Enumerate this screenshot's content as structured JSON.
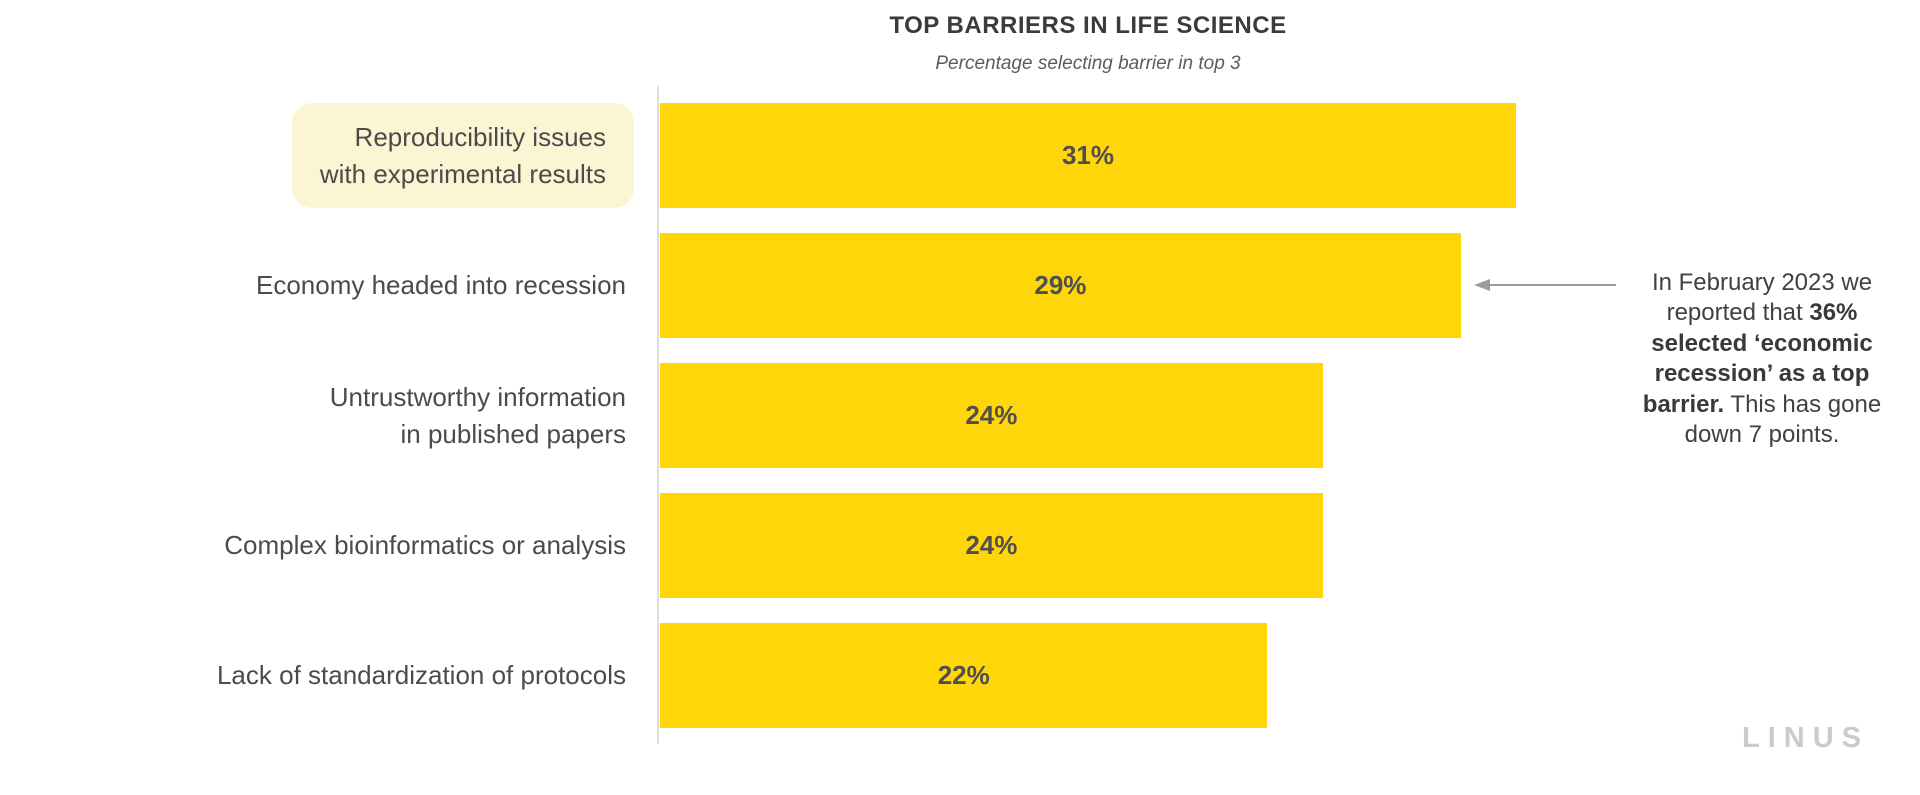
{
  "chart_data": {
    "type": "bar",
    "orientation": "horizontal",
    "title": "TOP BARRIERS IN LIFE SCIENCE",
    "subtitle": "Percentage selecting barrier in top 3",
    "categories": [
      "Reproducibility issues\nwith experimental results",
      "Economy headed into recession",
      "Untrustworthy information\nin published papers",
      "Complex bioinformatics or analysis",
      "Lack of standardization of protocols"
    ],
    "values": [
      31,
      29,
      24,
      24,
      22
    ],
    "value_labels": [
      "31%",
      "29%",
      "24%",
      "24%",
      "22%"
    ],
    "xlim": [
      0,
      31
    ],
    "grid": false,
    "legend": false,
    "bar_color": "#FFD60A",
    "highlighted_index": 0,
    "highlight_bg": "#FCF5D3"
  },
  "annotation": {
    "text_before": "In February 2023 we reported that",
    "text_bold": "36% selected ‘economic recession’ as a top barrier.",
    "text_after": "This has gone down 7 points.",
    "arrow_direction": "left",
    "arrow_color": "#9B9B9B"
  },
  "branding": {
    "logo_text": "LINUS",
    "logo_color": "#C9CBCC"
  }
}
